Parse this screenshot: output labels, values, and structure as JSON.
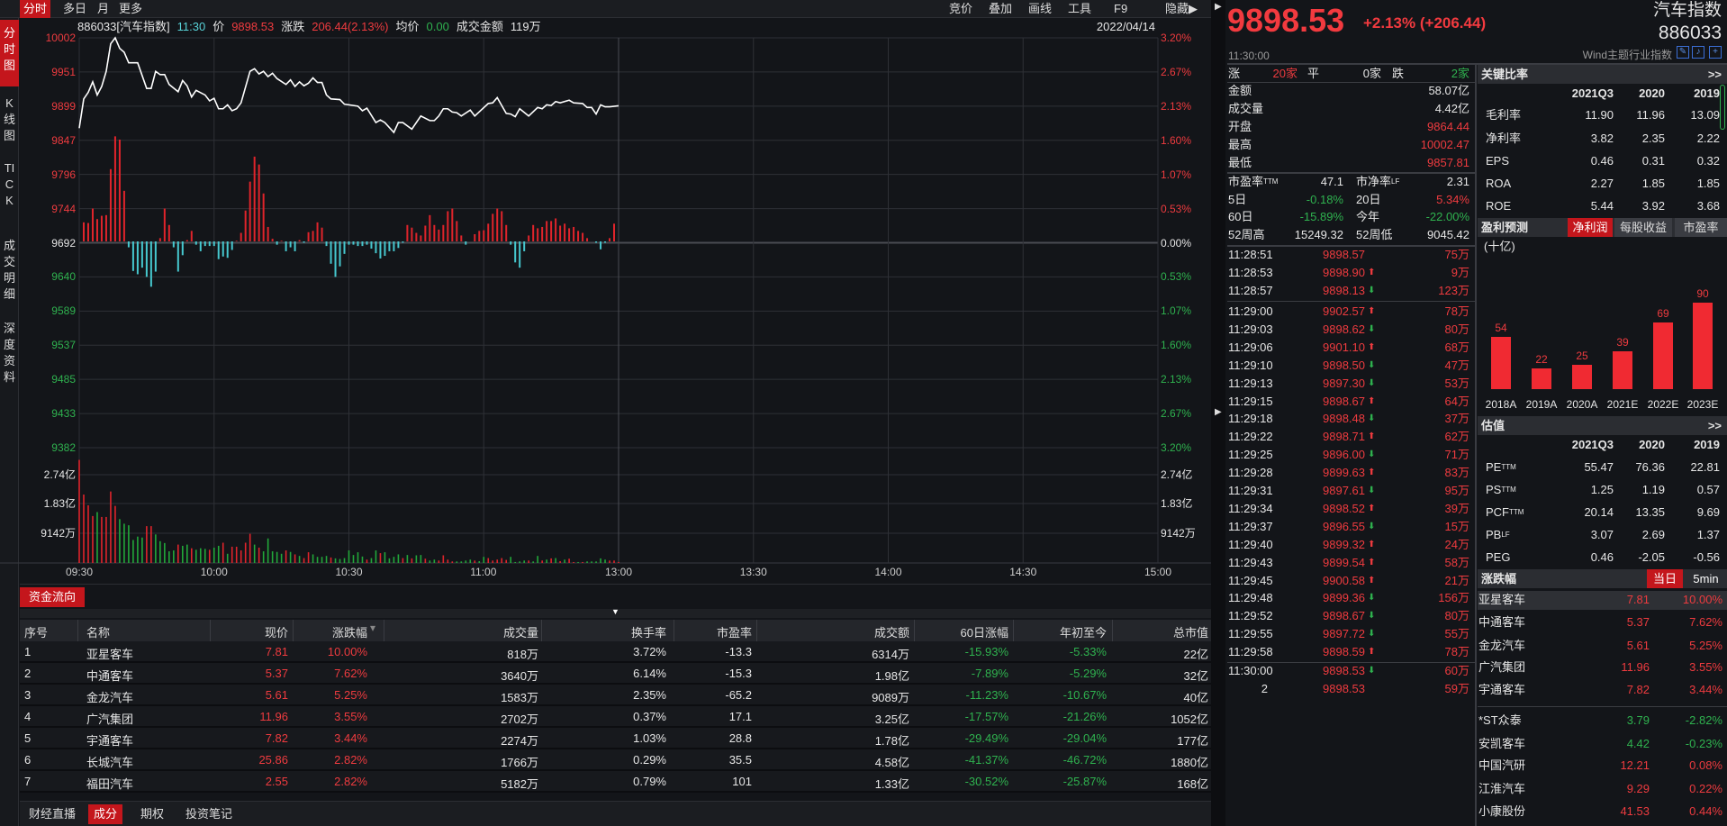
{
  "top_tabs": [
    "分时",
    "多日",
    "月",
    "更多"
  ],
  "top_tools": [
    "竞价",
    "叠加",
    "画线",
    "工具",
    "F9",
    "隐藏▶"
  ],
  "side_tabs": [
    "分时图",
    "K线图",
    "TICK",
    "成交明细",
    "深度资料"
  ],
  "info": {
    "code_name": "886033[汽车指数]",
    "time": "11:30",
    "price_label": "价",
    "price": "9898.53",
    "change_label": "涨跌",
    "change": "206.44(2.13%)",
    "avg_label": "均价",
    "avg": "0.00",
    "amount_label": "成交金额",
    "amount": "119万",
    "date": "2022/04/14"
  },
  "chart_data": {
    "type": "line",
    "prev_close": 9692.09,
    "price_ticks": [
      "10002",
      "9951",
      "9899",
      "9847",
      "9796",
      "9744",
      "9692",
      "9640",
      "9589",
      "9537",
      "9485",
      "9433",
      "9382"
    ],
    "pct_ticks": [
      "3.20%",
      "2.67%",
      "2.13%",
      "1.60%",
      "1.07%",
      "0.53%",
      "0.00%",
      "0.53%",
      "1.07%",
      "1.60%",
      "2.13%",
      "2.67%",
      "3.20%"
    ],
    "volume_ticks": [
      "2.74亿",
      "1.83亿",
      "9142万"
    ],
    "x_ticks": [
      "09:30",
      "10:00",
      "10:30",
      "11:00",
      "13:00",
      "13:30",
      "14:00",
      "14:30",
      "15:00"
    ],
    "ylim": [
      9382,
      10002
    ],
    "volume_max_wan": 27400,
    "colors": {
      "up": "#e0242b",
      "down": "#22a83a",
      "flow_down": "#46c8cf",
      "line": "#ffffff",
      "grid": "#2e3036"
    },
    "price": [
      [
        "09:30",
        9864.44
      ],
      [
        "09:31",
        9909
      ],
      [
        "09:32",
        9919
      ],
      [
        "09:33",
        9935
      ],
      [
        "09:34",
        9915
      ],
      [
        "09:35",
        9928
      ],
      [
        "09:36",
        9951
      ],
      [
        "09:37",
        9993
      ],
      [
        "09:38",
        10002
      ],
      [
        "09:39",
        9986
      ],
      [
        "09:40",
        9980
      ],
      [
        "09:41",
        9964
      ],
      [
        "09:43",
        9964
      ],
      [
        "09:45",
        9925
      ],
      [
        "09:46",
        9925
      ],
      [
        "09:47",
        9951
      ],
      [
        "09:48",
        9946
      ],
      [
        "09:49",
        9946
      ],
      [
        "09:50",
        9931
      ],
      [
        "09:52",
        9920
      ],
      [
        "09:53",
        9937
      ],
      [
        "09:54",
        9929
      ],
      [
        "09:55",
        9912
      ],
      [
        "09:56",
        9922
      ],
      [
        "09:58",
        9915
      ],
      [
        "09:59",
        9906
      ],
      [
        "10:00",
        9910
      ],
      [
        "10:01",
        9894
      ],
      [
        "10:02",
        9894
      ],
      [
        "10:03",
        9900
      ],
      [
        "10:04",
        9891
      ],
      [
        "10:05",
        9894
      ],
      [
        "10:06",
        9903
      ],
      [
        "10:08",
        9951
      ],
      [
        "10:09",
        9955
      ],
      [
        "10:10",
        9947
      ],
      [
        "10:11",
        9951
      ],
      [
        "10:12",
        9943
      ],
      [
        "10:13",
        9948
      ],
      [
        "10:14",
        9940
      ],
      [
        "10:16",
        9931
      ],
      [
        "10:17",
        9938
      ],
      [
        "10:18",
        9928
      ],
      [
        "10:19",
        9935
      ],
      [
        "10:20",
        9929
      ],
      [
        "10:21",
        9933
      ],
      [
        "10:22",
        9941
      ],
      [
        "10:23",
        9934
      ],
      [
        "10:24",
        9934
      ],
      [
        "10:25",
        9915
      ],
      [
        "10:26",
        9909
      ],
      [
        "10:28",
        9908
      ],
      [
        "10:29",
        9901
      ],
      [
        "10:32",
        9898
      ],
      [
        "10:33",
        9891
      ],
      [
        "10:34",
        9895
      ],
      [
        "10:36",
        9873
      ],
      [
        "10:37",
        9877
      ],
      [
        "10:38",
        9873
      ],
      [
        "10:40",
        9858
      ],
      [
        "10:41",
        9873
      ],
      [
        "10:42",
        9873
      ],
      [
        "10:44",
        9863
      ],
      [
        "10:46",
        9883
      ],
      [
        "10:48",
        9876
      ],
      [
        "10:49",
        9876
      ],
      [
        "10:50",
        9883
      ],
      [
        "10:51",
        9894
      ],
      [
        "10:52",
        9894
      ],
      [
        "10:53",
        9889
      ],
      [
        "10:54",
        9888
      ],
      [
        "10:55",
        9883
      ],
      [
        "10:57",
        9892
      ],
      [
        "10:58",
        9883
      ],
      [
        "11:01",
        9902
      ],
      [
        "11:02",
        9903
      ],
      [
        "11:03",
        9911
      ],
      [
        "11:05",
        9887
      ],
      [
        "11:06",
        9886
      ],
      [
        "11:07",
        9882
      ],
      [
        "11:08",
        9894
      ],
      [
        "11:10",
        9883
      ],
      [
        "11:12",
        9896
      ],
      [
        "11:13",
        9894
      ],
      [
        "11:14",
        9900
      ],
      [
        "11:15",
        9899
      ],
      [
        "11:16",
        9905
      ],
      [
        "11:17",
        9903
      ],
      [
        "11:19",
        9907
      ],
      [
        "11:20",
        9903
      ],
      [
        "11:22",
        9902
      ],
      [
        "11:23",
        9896
      ],
      [
        "11:24",
        9896
      ],
      [
        "11:25",
        9886
      ],
      [
        "11:26",
        9900
      ],
      [
        "11:27",
        9897
      ],
      [
        "11:28",
        9897
      ],
      [
        "11:30",
        9898.53
      ]
    ],
    "flow": [
      29,
      28,
      50,
      34,
      39,
      40,
      110,
      160,
      155,
      77,
      -9,
      -45,
      -50,
      -40,
      -54,
      -69,
      -46,
      5,
      50,
      25,
      -9,
      -46,
      -21,
      2,
      16,
      -5,
      -15,
      -7,
      -7,
      -7,
      -27,
      -23,
      -25,
      -13,
      1,
      13,
      47,
      91,
      129,
      117,
      73,
      22,
      4,
      -5,
      1,
      -15,
      -9,
      -15,
      2,
      -2,
      14,
      16,
      29,
      21,
      -7,
      -34,
      -54,
      -38,
      -19,
      -5,
      -5,
      -7,
      -7,
      -5,
      -11,
      -18,
      -26,
      -22,
      -15,
      -15,
      -10,
      -2,
      25,
      21,
      13,
      9,
      24,
      40,
      25,
      18,
      25,
      46,
      50,
      31,
      9,
      -5,
      0,
      11,
      16,
      17,
      27,
      42,
      50,
      46,
      25,
      -5,
      -32,
      -40,
      -15,
      9,
      25,
      20,
      22,
      31,
      31,
      35,
      24,
      27,
      20,
      22,
      16,
      13,
      5,
      0,
      -2,
      -12,
      -2,
      5,
      27
    ],
    "volume_wan": [
      32000,
      21240,
      17900,
      14570,
      15800,
      14280,
      14280,
      22190,
      17710,
      13620,
      12190,
      11710,
      7140,
      8190,
      7900,
      11430,
      11430,
      8860,
      6760,
      6190,
      3620,
      3900,
      5710,
      5330,
      5710,
      4570,
      4100,
      4570,
      4380,
      4100,
      4760,
      5330,
      6290,
      2860,
      5050,
      5050,
      3900,
      6290,
      9050,
      5710,
      4760,
      3620,
      7620,
      3620,
      3430,
      2860,
      3900,
      3430,
      2670,
      2190,
      1520,
      3330,
      2670,
      1900,
      1900,
      2190,
      1710,
      1430,
      1240,
      1520,
      3900,
      2480,
      3330,
      2000,
      1050,
      1520,
      3900,
      3050,
      3330,
      1430,
      1900,
      2670,
      1520,
      2480,
      1430,
      2380,
      2480,
      1330,
      760,
      1050,
      760,
      2380,
      1050,
      480,
      480,
      480,
      760,
      1050,
      760,
      570,
      1900,
      1520,
      760,
      1050,
      1520,
      950,
      1900,
      290,
      480,
      760,
      760,
      480,
      2190,
      760,
      1050,
      1430,
      1520,
      570,
      1050,
      1330,
      290,
      290,
      290,
      480,
      480,
      480,
      1430,
      1050,
      760,
      760,
      290
    ],
    "volume_colors": "rrrrgrrrrggggggrrgggggrggrgggrggrgrrrrrgrgggggrgrgrrggggrgggggggrggrggggrgrggrggrrrrggggrggrrrrrggggrggrgrgrgrrgrgggggrrrg"
  },
  "table": {
    "tab": "资金流向",
    "columns": [
      "序号",
      "名称",
      "现价",
      "涨跌幅",
      "成交量",
      "换手率",
      "市盈率",
      "成交额",
      "60日涨幅",
      "年初至今",
      "总市值"
    ],
    "rows": [
      [
        "1",
        "亚星客车",
        "7.81",
        "10.00%",
        "818万",
        "3.72%",
        "-13.3",
        "6314万",
        "-15.93%",
        "-5.33%",
        "22亿"
      ],
      [
        "2",
        "中通客车",
        "5.37",
        "7.62%",
        "3640万",
        "6.14%",
        "-15.3",
        "1.98亿",
        "-7.89%",
        "-5.29%",
        "32亿"
      ],
      [
        "3",
        "金龙汽车",
        "5.61",
        "5.25%",
        "1583万",
        "2.35%",
        "-65.2",
        "9089万",
        "-11.23%",
        "-10.67%",
        "40亿"
      ],
      [
        "4",
        "广汽集团",
        "11.96",
        "3.55%",
        "2702万",
        "0.37%",
        "17.1",
        "3.25亿",
        "-17.57%",
        "-21.26%",
        "1052亿"
      ],
      [
        "5",
        "宇通客车",
        "7.82",
        "3.44%",
        "2274万",
        "1.03%",
        "28.8",
        "1.78亿",
        "-29.49%",
        "-29.04%",
        "177亿"
      ],
      [
        "6",
        "长城汽车",
        "25.86",
        "2.82%",
        "1766万",
        "0.29%",
        "35.5",
        "4.58亿",
        "-41.37%",
        "-46.72%",
        "1880亿"
      ],
      [
        "7",
        "福田汽车",
        "2.55",
        "2.82%",
        "5182万",
        "0.79%",
        "101",
        "1.33亿",
        "-30.52%",
        "-25.87%",
        "168亿"
      ]
    ]
  },
  "bottom_tabs": [
    "财经直播",
    "成分",
    "期权",
    "投资笔记"
  ],
  "quote": {
    "price": "9898.53",
    "change": "+2.13% (+206.44)",
    "time": "11:30:00",
    "name": "汽车指数",
    "code": "886033",
    "category": "Wind主题行业指数",
    "breadth": {
      "up_label": "涨",
      "up": "20家",
      "flat_label": "平",
      "flat": "0家",
      "down_label": "跌",
      "down": "2家"
    },
    "stats": [
      [
        "金额",
        "58.07亿",
        "white"
      ],
      [
        "成交量",
        "4.42亿",
        "white"
      ],
      [
        "开盘",
        "9864.44",
        "red"
      ],
      [
        "最高",
        "10002.47",
        "red"
      ],
      [
        "最低",
        "9857.81",
        "red"
      ]
    ],
    "stats2": [
      [
        "市盈率",
        "TTM",
        "47.1",
        "white",
        "市净率",
        "LF",
        "2.31",
        "white"
      ],
      [
        "5日",
        "",
        "-0.18%",
        "green",
        "20日",
        "",
        "5.34%",
        "red"
      ],
      [
        "60日",
        "",
        "-15.89%",
        "green",
        "今年",
        "",
        "-22.00%",
        "green"
      ],
      [
        "52周高",
        "",
        "15249.32",
        "white",
        "52周低",
        "",
        "9045.42",
        "white"
      ]
    ],
    "ticks": [
      [
        "11:28:51",
        "9898.57",
        "",
        "75万"
      ],
      [
        "11:28:53",
        "9898.90",
        "up",
        "9万"
      ],
      [
        "11:28:57",
        "9898.13",
        "down",
        "123万"
      ],
      [
        "11:29:00",
        "9902.57",
        "up",
        "78万"
      ],
      [
        "11:29:03",
        "9898.62",
        "down",
        "80万"
      ],
      [
        "11:29:06",
        "9901.10",
        "up",
        "68万"
      ],
      [
        "11:29:10",
        "9898.50",
        "down",
        "47万"
      ],
      [
        "11:29:13",
        "9897.30",
        "down",
        "53万"
      ],
      [
        "11:29:15",
        "9898.67",
        "up",
        "64万"
      ],
      [
        "11:29:18",
        "9898.48",
        "down",
        "37万"
      ],
      [
        "11:29:22",
        "9898.71",
        "up",
        "62万"
      ],
      [
        "11:29:25",
        "9896.00",
        "down",
        "71万"
      ],
      [
        "11:29:28",
        "9899.63",
        "up",
        "83万"
      ],
      [
        "11:29:31",
        "9897.61",
        "down",
        "95万"
      ],
      [
        "11:29:34",
        "9898.52",
        "up",
        "39万"
      ],
      [
        "11:29:37",
        "9896.55",
        "down",
        "15万"
      ],
      [
        "11:29:40",
        "9899.32",
        "up",
        "24万"
      ],
      [
        "11:29:43",
        "9899.54",
        "up",
        "58万"
      ],
      [
        "11:29:45",
        "9900.58",
        "up",
        "21万"
      ],
      [
        "11:29:48",
        "9899.36",
        "down",
        "156万"
      ],
      [
        "11:29:52",
        "9898.67",
        "down",
        "80万"
      ],
      [
        "11:29:55",
        "9897.72",
        "down",
        "55万"
      ],
      [
        "11:29:58",
        "9898.59",
        "up",
        "78万"
      ],
      [
        "11:30:00",
        "9898.53",
        "down",
        "60万"
      ],
      [
        "2",
        "9898.53",
        "",
        "59万"
      ]
    ]
  },
  "ratios": {
    "title": "关键比率",
    "more": ">>",
    "columns": [
      "2021Q3",
      "2020",
      "2019"
    ],
    "rows": [
      [
        "毛利率",
        "",
        "11.90",
        "11.96",
        "13.09"
      ],
      [
        "净利率",
        "",
        "3.82",
        "2.35",
        "2.22"
      ],
      [
        "EPS",
        "",
        "0.46",
        "0.31",
        "0.32"
      ],
      [
        "ROA",
        "",
        "2.27",
        "1.85",
        "1.85"
      ],
      [
        "ROE",
        "",
        "5.44",
        "3.92",
        "3.68"
      ]
    ]
  },
  "forecast": {
    "title": "盈利预测",
    "tabs": [
      "净利润",
      "每股收益",
      "市盈率"
    ],
    "unit": "(十亿)",
    "chart_data": {
      "type": "bar",
      "categories": [
        "2018A",
        "2019A",
        "2020A",
        "2021E",
        "2022E",
        "2023E"
      ],
      "values": [
        54,
        22,
        25,
        39,
        69,
        90
      ],
      "ylabel": "(十亿)"
    }
  },
  "valuation": {
    "title": "估值",
    "more": ">>",
    "columns": [
      "2021Q3",
      "2020",
      "2019"
    ],
    "rows": [
      [
        "PE",
        "TTM",
        "55.47",
        "76.36",
        "22.81"
      ],
      [
        "PS",
        "TTM",
        "1.25",
        "1.19",
        "0.57"
      ],
      [
        "PCF",
        "TTM",
        "20.14",
        "13.35",
        "9.69"
      ],
      [
        "PB",
        "LF",
        "3.07",
        "2.69",
        "1.37"
      ],
      [
        "PEG",
        "",
        "0.46",
        "-2.05",
        "-0.56"
      ]
    ]
  },
  "movers": {
    "title": "涨跌幅",
    "tabs": [
      "当日",
      "5min"
    ],
    "gainers": [
      [
        "亚星客车",
        "7.81",
        "10.00%"
      ],
      [
        "中通客车",
        "5.37",
        "7.62%"
      ],
      [
        "金龙汽车",
        "5.61",
        "5.25%"
      ],
      [
        "广汽集团",
        "11.96",
        "3.55%"
      ],
      [
        "宇通客车",
        "7.82",
        "3.44%"
      ]
    ],
    "losers": [
      [
        "*ST众泰",
        "3.79",
        "-2.82%",
        "green"
      ],
      [
        "安凯客车",
        "4.42",
        "-0.23%",
        "green"
      ],
      [
        "中国汽研",
        "12.21",
        "0.08%",
        "red"
      ],
      [
        "江淮汽车",
        "9.29",
        "0.22%",
        "red"
      ],
      [
        "小康股份",
        "41.53",
        "0.44%",
        "red"
      ]
    ]
  }
}
